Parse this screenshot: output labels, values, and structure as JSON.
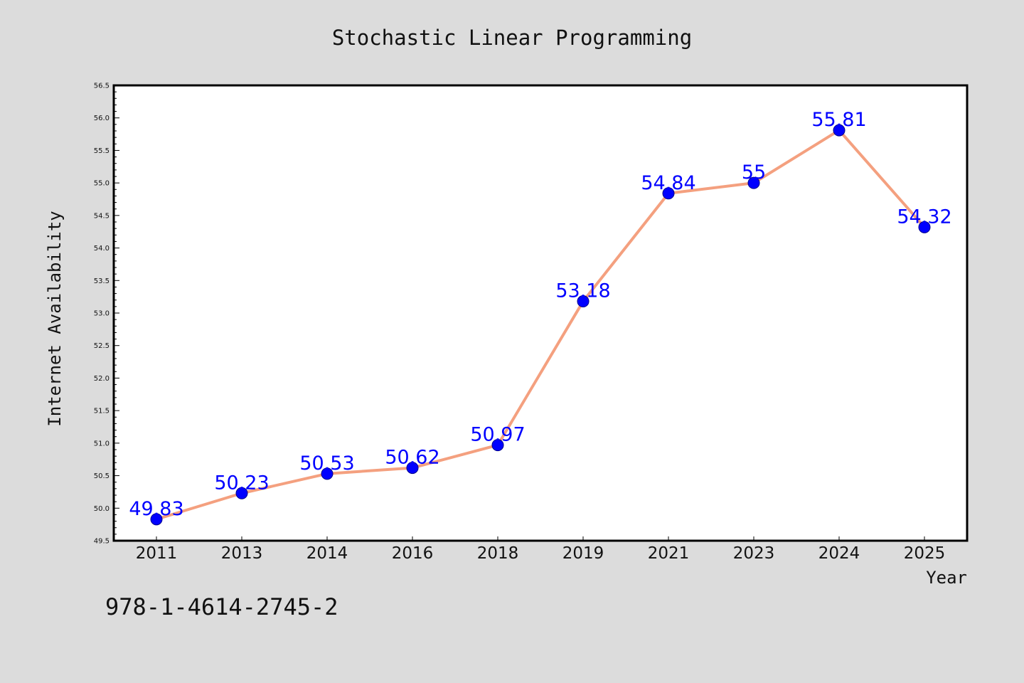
{
  "caption": "978-1-4614-2745-2",
  "colors": {
    "background": "#dcdcdc",
    "plot_background": "#ffffff",
    "line": "#f4a07f",
    "marker": "#0000ff",
    "label": "#0000ff",
    "axis": "#000000"
  },
  "chart_data": {
    "type": "line",
    "title": "Stochastic Linear Programming",
    "xlabel": "Year",
    "ylabel": "Internet Availability",
    "categories": [
      "2011",
      "2013",
      "2014",
      "2016",
      "2018",
      "2019",
      "2021",
      "2023",
      "2024",
      "2025"
    ],
    "series": [
      {
        "values": [
          49.83,
          50.23,
          50.53,
          50.62,
          50.97,
          53.18,
          54.84,
          55.0,
          55.81,
          54.32
        ],
        "labels": [
          "49.83",
          "50.23",
          "50.53",
          "50.62",
          "50.97",
          "53.18",
          "54.84",
          "55",
          "55.81",
          "54.32"
        ]
      }
    ],
    "ylim": [
      49.5,
      56.5
    ],
    "yticks": [
      "49.5",
      "50.0",
      "50.5",
      "51.0",
      "51.5",
      "52.0",
      "52.5",
      "53.0",
      "53.5",
      "54.0",
      "54.5",
      "55.0",
      "55.5",
      "56.0",
      "56.5"
    ],
    "grid": false,
    "legend": "none",
    "marker": "circle",
    "data_labels": true
  }
}
